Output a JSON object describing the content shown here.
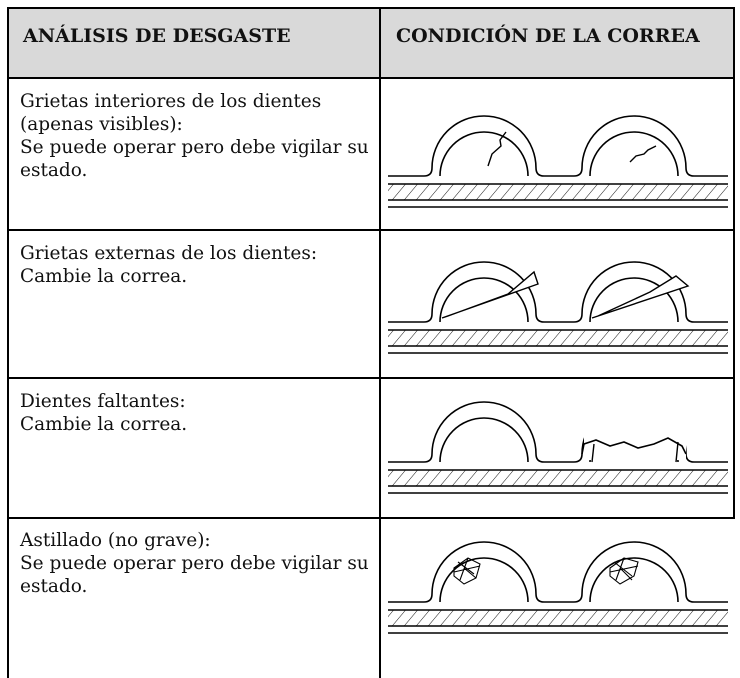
{
  "header": {
    "col1": "ANÁLISIS DE DESGASTE",
    "col2": "CONDICIÓN DE LA CORREA"
  },
  "rows": [
    {
      "condition": "Grietas interiores de los dientes (apenas visibles):",
      "action": "Se puede operar pero debe vigilar su estado."
    },
    {
      "condition": "Grietas externas de los dientes:",
      "action": "Cambie la correa."
    },
    {
      "condition": "Dientes faltantes:",
      "action": "Cambie la correa."
    },
    {
      "condition": "Astillado (no grave):",
      "action": "Se puede operar pero debe vigilar su estado."
    }
  ]
}
